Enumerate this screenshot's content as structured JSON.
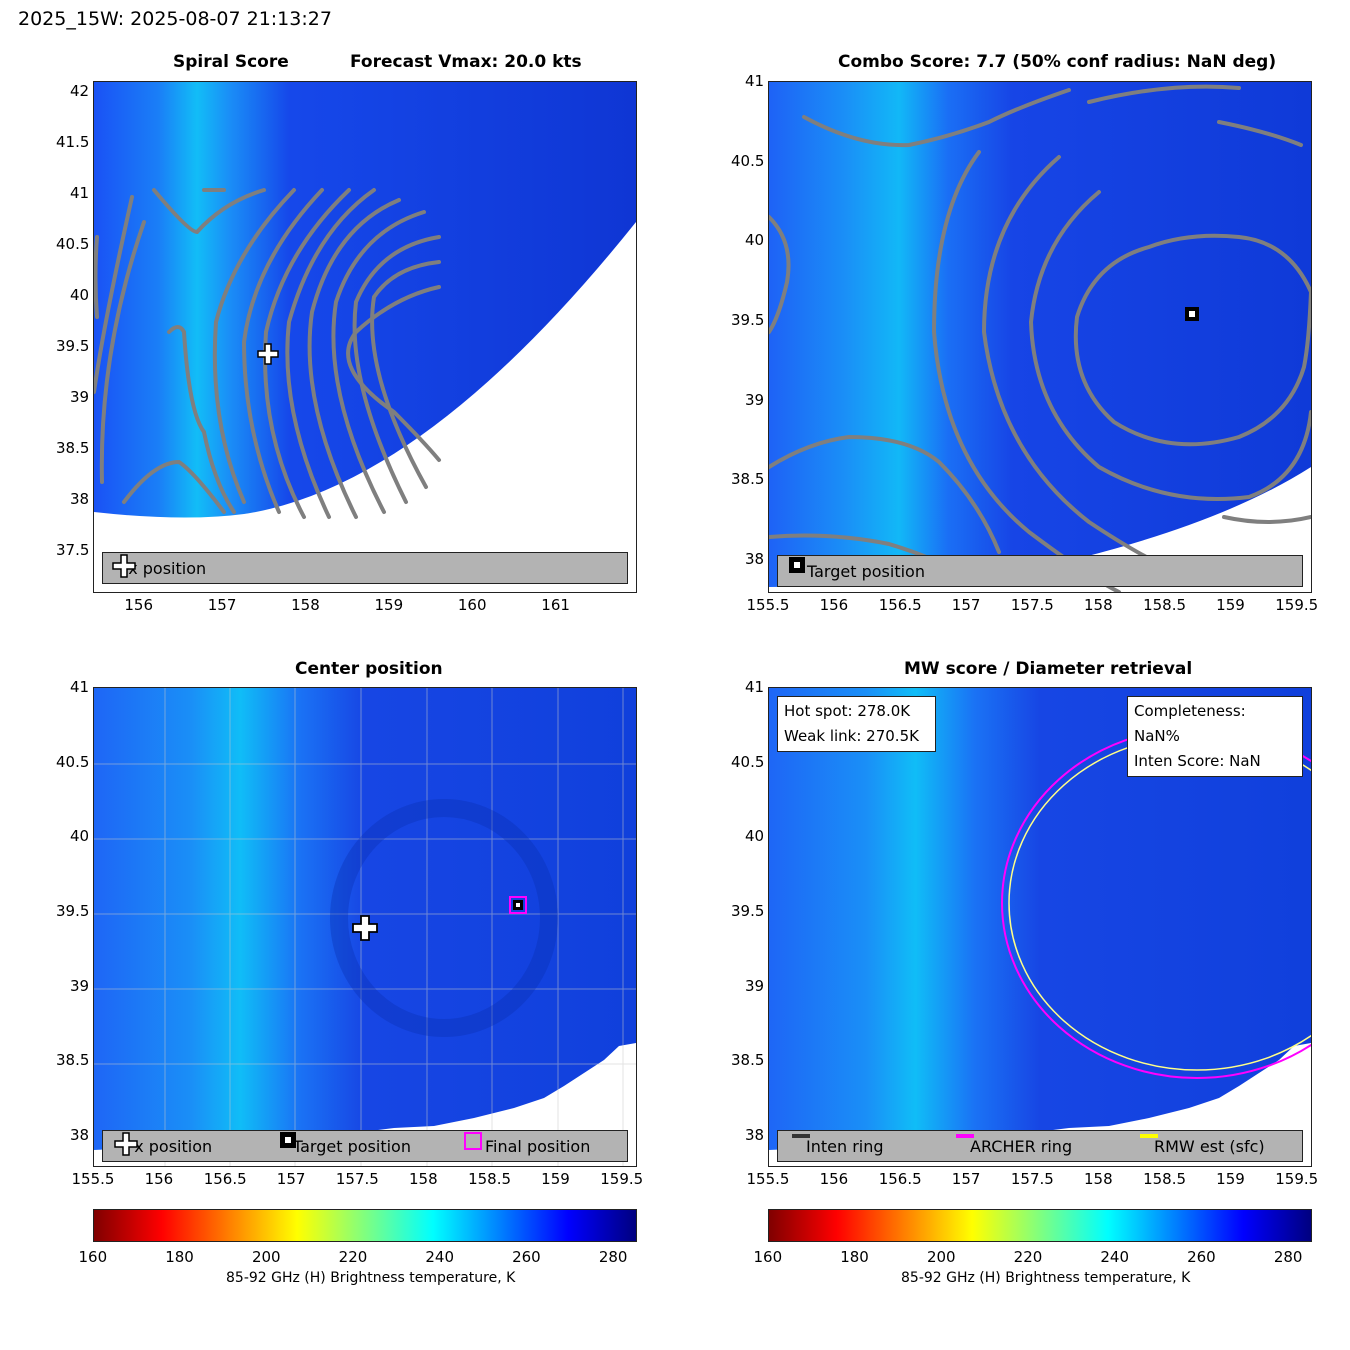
{
  "header": {
    "suptitle": "2025_15W: 2025-08-07 21:13:27"
  },
  "colors": {
    "contour": "#7f7f7f",
    "legend_bg": "#b3b3b3",
    "archer": "#ff00ff",
    "rmw": "#ffff00",
    "inten": "#333333"
  },
  "panels": {
    "spiral": {
      "title_left": "Spiral Score",
      "title_right": "Forecast Vmax: 20.0 kts",
      "legend": {
        "fx": "Fx position"
      }
    },
    "combo": {
      "title": "Combo Score: 7.7  (50% conf radius: NaN deg)",
      "legend": {
        "target": "Target position"
      }
    },
    "center": {
      "title": "Center position",
      "legend": {
        "fx": "Fx position",
        "target": "Target position",
        "final": "Final position"
      }
    },
    "mw": {
      "title": "MW score / Diameter retrieval",
      "hot_spot": "Hot spot: 278.0K",
      "weak_link": "Weak link: 270.5K",
      "completeness": "Completeness: NaN%",
      "inten_score": "Inten Score: NaN",
      "legend": {
        "inten": "Inten ring",
        "archer": "ARCHER ring",
        "rmw": "RMW est (sfc)"
      }
    },
    "colorbar": {
      "label": "85-92 GHz (H) Brightness temperature, K"
    }
  },
  "chart_data": [
    {
      "type": "heatmap",
      "title": "Spiral Score",
      "subtitle": "Forecast Vmax: 20.0 kts",
      "xlim": [
        155.45,
        161.95
      ],
      "ylim": [
        37.1,
        42.1
      ],
      "xticks": [
        "156",
        "157",
        "158",
        "159",
        "160",
        "161"
      ],
      "yticks": [
        "37.5",
        "38",
        "38.5",
        "39",
        "39.5",
        "40",
        "40.5",
        "41",
        "41.5",
        "42"
      ],
      "fx_position": {
        "x": 157.5,
        "y": 39.4
      },
      "legend": [
        "Fx position"
      ]
    },
    {
      "type": "heatmap",
      "title": "Combo Score: 7.7  (50% conf radius: NaN deg)",
      "xlim": [
        155.5,
        159.6
      ],
      "ylim": [
        37.8,
        41.0
      ],
      "xticks": [
        "155.5",
        "156",
        "156.5",
        "157",
        "157.5",
        "158",
        "158.5",
        "159",
        "159.5"
      ],
      "yticks": [
        "38",
        "38.5",
        "39",
        "39.5",
        "40",
        "40.5",
        "41"
      ],
      "target_position": {
        "x": 158.67,
        "y": 39.56
      },
      "legend": [
        "Target position"
      ]
    },
    {
      "type": "heatmap",
      "title": "Center position",
      "xlim": [
        155.5,
        159.6
      ],
      "ylim": [
        37.8,
        41.0
      ],
      "xticks": [
        "155.5",
        "156",
        "156.5",
        "157",
        "157.5",
        "158",
        "158.5",
        "159",
        "159.5"
      ],
      "yticks": [
        "38",
        "38.5",
        "39",
        "39.5",
        "40",
        "40.5",
        "41"
      ],
      "fx_position": {
        "x": 157.5,
        "y": 39.4
      },
      "target_position": {
        "x": 158.67,
        "y": 39.56
      },
      "final_position": {
        "x": 158.67,
        "y": 39.56
      },
      "grid": true,
      "legend": [
        "Fx position",
        "Target position",
        "Final position"
      ]
    },
    {
      "type": "heatmap",
      "title": "MW score / Diameter retrieval",
      "xlim": [
        155.5,
        159.6
      ],
      "ylim": [
        37.8,
        41.0
      ],
      "xticks": [
        "155.5",
        "156",
        "156.5",
        "157",
        "157.5",
        "158",
        "158.5",
        "159",
        "159.5"
      ],
      "yticks": [
        "38",
        "38.5",
        "39",
        "39.5",
        "40",
        "40.5",
        "41"
      ],
      "archer_ring": {
        "cx": 158.7,
        "cy": 39.56,
        "rx": 1.47,
        "ry": 1.13
      },
      "rmw_ring": {
        "cx": 158.7,
        "cy": 39.56,
        "rx": 1.42,
        "ry": 1.08
      },
      "legend": [
        "Inten ring",
        "ARCHER ring",
        "RMW est (sfc)"
      ]
    },
    {
      "type": "colorbar",
      "colormap": "jet",
      "range": [
        160,
        285
      ],
      "ticks": [
        "160",
        "180",
        "200",
        "220",
        "240",
        "260",
        "280"
      ],
      "label": "85-92 GHz (H) Brightness temperature, K"
    }
  ]
}
